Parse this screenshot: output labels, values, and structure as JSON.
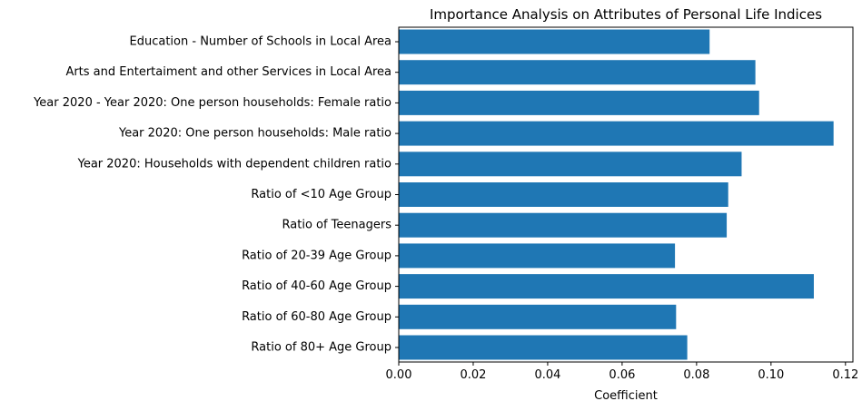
{
  "chart_data": {
    "type": "bar",
    "orientation": "horizontal",
    "title": "Importance Analysis on Attributes of Personal Life Indices",
    "xlabel": "Coefficient",
    "ylabel": "",
    "xlim": [
      0,
      0.122
    ],
    "xticks": [
      0.0,
      0.02,
      0.04,
      0.06,
      0.08,
      0.1,
      0.12
    ],
    "xtick_labels": [
      "0.00",
      "0.02",
      "0.04",
      "0.06",
      "0.08",
      "0.10",
      "0.12"
    ],
    "categories": [
      "Education - Number of Schools in Local Area",
      "Arts and Entertaiment and other Services in Local Area",
      "Year 2020 - Year 2020: One person households: Female ratio",
      "Year 2020: One person households: Male ratio",
      "Year 2020: Households with dependent children ratio",
      "Ratio of <10 Age Group",
      "Ratio of Teenagers",
      "Ratio of 20-39 Age Group",
      "Ratio of 40-60 Age Group",
      "Ratio of 60-80 Age Group",
      "Ratio of 80+ Age Group"
    ],
    "values": [
      0.0835,
      0.0958,
      0.0968,
      0.1168,
      0.0921,
      0.0885,
      0.0881,
      0.0742,
      0.1115,
      0.0745,
      0.0775
    ],
    "bar_color": "#1f77b4",
    "grid": false,
    "legend": "none"
  }
}
